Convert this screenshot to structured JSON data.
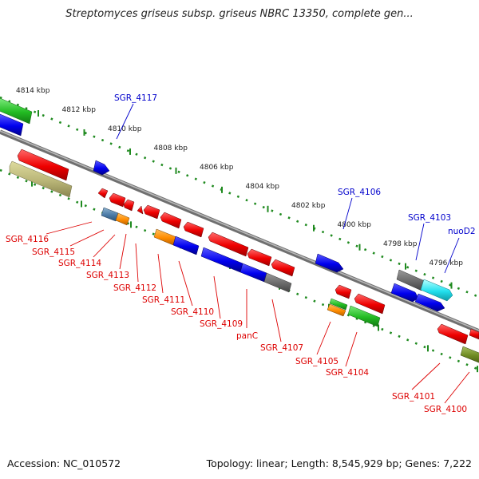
{
  "title": "Streptomyces griseus subsp. griseus NBRC 13350, complete gen...",
  "footer": {
    "accession": "Accession: NC_010572",
    "stats": "Topology: linear; Length: 8,545,929 bp; Genes: 7,222"
  },
  "colors": {
    "backbone": "#888888",
    "dotted_scale": "#1f8a1f",
    "label_forward": "#0000cc",
    "label_reverse": "#dd0000"
  },
  "scale_labels": [
    "4814 kbp",
    "4812 kbp",
    "4810 kbp",
    "4808 kbp",
    "4806 kbp",
    "4804 kbp",
    "4802 kbp",
    "4800 kbp",
    "4798 kbp",
    "4796 kbp"
  ],
  "gene_labels": [
    {
      "text": "SGR_4117",
      "strand": "forward"
    },
    {
      "text": "SGR_4106",
      "strand": "forward"
    },
    {
      "text": "SGR_4103",
      "strand": "forward"
    },
    {
      "text": "nuoD2",
      "strand": "forward"
    },
    {
      "text": "SGR_4116",
      "strand": "reverse"
    },
    {
      "text": "SGR_4115",
      "strand": "reverse"
    },
    {
      "text": "SGR_4114",
      "strand": "reverse"
    },
    {
      "text": "SGR_4113",
      "strand": "reverse"
    },
    {
      "text": "SGR_4112",
      "strand": "reverse"
    },
    {
      "text": "SGR_4111",
      "strand": "reverse"
    },
    {
      "text": "SGR_4110",
      "strand": "reverse"
    },
    {
      "text": "SGR_4109",
      "strand": "reverse"
    },
    {
      "text": "panC",
      "strand": "reverse"
    },
    {
      "text": "SGR_4107",
      "strand": "reverse"
    },
    {
      "text": "SGR_4105",
      "strand": "reverse"
    },
    {
      "text": "SGR_4104",
      "strand": "reverse"
    },
    {
      "text": "SGR_4101",
      "strand": "reverse"
    },
    {
      "text": "SGR_4100",
      "strand": "reverse"
    }
  ]
}
